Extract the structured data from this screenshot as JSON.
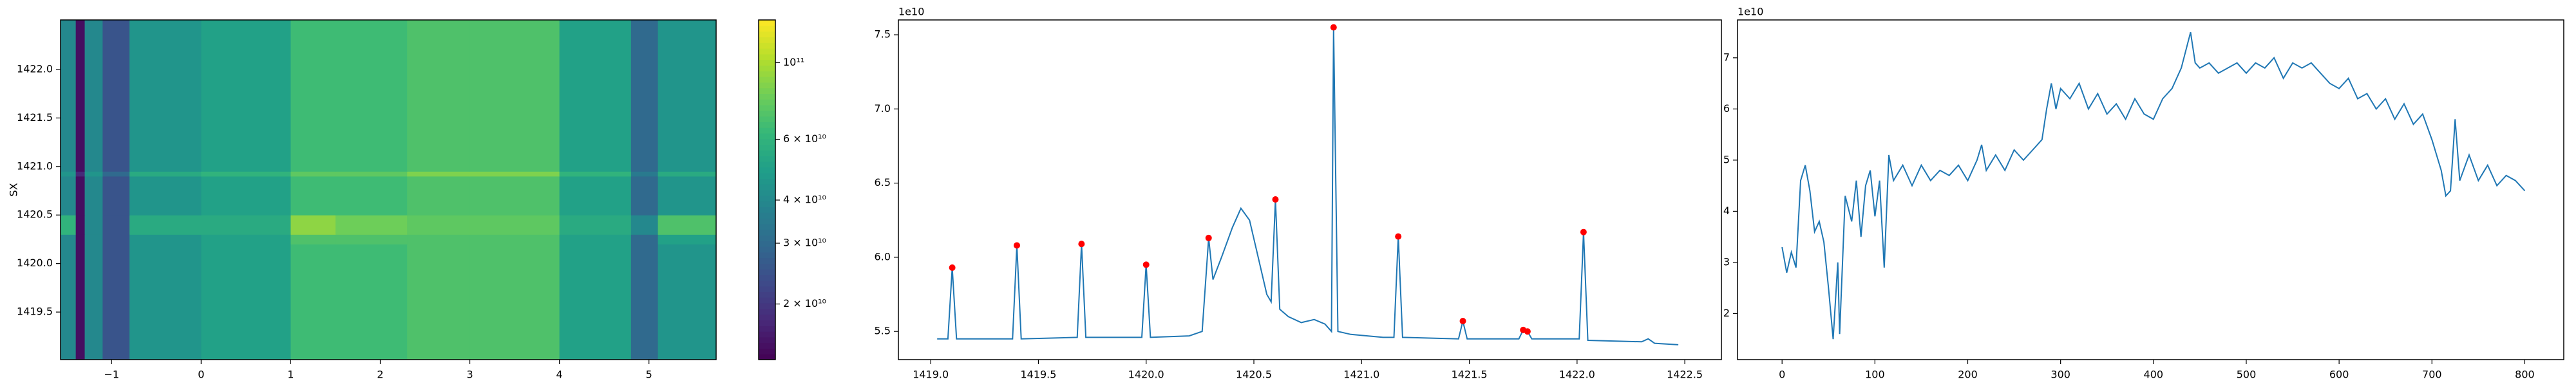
{
  "chart_data": [
    {
      "type": "heatmap",
      "ylabel": "SX",
      "colormap": "viridis",
      "log_color": true,
      "xbins": [
        -1.57,
        -1.4,
        -1.3,
        -1.1,
        -0.8,
        0,
        1,
        1.5,
        2.3,
        3,
        4,
        4.8,
        5.1,
        5.75
      ],
      "ybins": [
        1419.01,
        1420.2,
        1420.3,
        1420.5,
        1420.9,
        1420.95,
        1422.51
      ],
      "values": [
        [
          40000000000.0,
          15000000000.0,
          40000000000.0,
          25000000000.0,
          45000000000.0,
          50000000000.0,
          65000000000.0,
          65000000000.0,
          70000000000.0,
          70000000000.0,
          50000000000.0,
          30000000000.0,
          45000000000.0
        ],
        [
          40000000000.0,
          15000000000.0,
          40000000000.0,
          25000000000.0,
          45000000000.0,
          50000000000.0,
          70000000000.0,
          70000000000.0,
          70000000000.0,
          70000000000.0,
          50000000000.0,
          30000000000.0,
          50000000000.0
        ],
        [
          60000000000.0,
          15000000000.0,
          40000000000.0,
          25000000000.0,
          55000000000.0,
          55000000000.0,
          90000000000.0,
          80000000000.0,
          75000000000.0,
          75000000000.0,
          55000000000.0,
          40000000000.0,
          70000000000.0
        ],
        [
          40000000000.0,
          15000000000.0,
          40000000000.0,
          25000000000.0,
          45000000000.0,
          50000000000.0,
          65000000000.0,
          65000000000.0,
          70000000000.0,
          70000000000.0,
          50000000000.0,
          30000000000.0,
          45000000000.0
        ],
        [
          45000000000.0,
          18000000000.0,
          45000000000.0,
          30000000000.0,
          55000000000.0,
          60000000000.0,
          75000000000.0,
          75000000000.0,
          85000000000.0,
          85000000000.0,
          60000000000.0,
          35000000000.0,
          55000000000.0
        ],
        [
          40000000000.0,
          15000000000.0,
          40000000000.0,
          25000000000.0,
          45000000000.0,
          50000000000.0,
          65000000000.0,
          65000000000.0,
          70000000000.0,
          70000000000.0,
          50000000000.0,
          30000000000.0,
          45000000000.0
        ]
      ],
      "xlim": [
        -1.57,
        5.75
      ],
      "ylim": [
        1419.01,
        1422.51
      ],
      "xticks": [
        {
          "value": -1,
          "label": "−1"
        },
        0,
        1,
        2,
        3,
        4,
        5
      ],
      "yticks": [
        1419.5,
        {
          "value": 1420,
          "label": "1420.0"
        },
        1420.5,
        {
          "value": 1421,
          "label": "1421.0"
        },
        1421.5,
        {
          "value": 1422,
          "label": "1422.0"
        }
      ],
      "clim": [
        13800000000.0,
        133000000000.0
      ],
      "cticks": [
        {
          "value": 20000000000.0,
          "label": "2 × 10¹⁰"
        },
        {
          "value": 30000000000.0,
          "label": "3 × 10¹⁰"
        },
        {
          "value": 40000000000.0,
          "label": "4 × 10¹⁰"
        },
        {
          "value": 60000000000.0,
          "label": "6 × 10¹⁰"
        },
        {
          "value": 100000000000.0,
          "label": "10¹¹"
        }
      ]
    },
    {
      "type": "line",
      "y_offset_text": "1e10",
      "xlim": [
        1418.85,
        1422.67
      ],
      "ylim": [
        5.31,
        7.6
      ],
      "xticks": [
        {
          "value": 1419,
          "label": "1419.0"
        },
        1419.5,
        {
          "value": 1420,
          "label": "1420.0"
        },
        1420.5,
        {
          "value": 1421,
          "label": "1421.0"
        },
        1421.5,
        {
          "value": 1422,
          "label": "1422.0"
        },
        1422.5
      ],
      "yticks": [
        5.5,
        {
          "value": 6,
          "label": "6.0"
        },
        6.5,
        {
          "value": 7,
          "label": "7.0"
        },
        7.5
      ],
      "series": [
        {
          "color": "#1f77b4",
          "x": [
            1419.03,
            1419.08,
            1419.1,
            1419.12,
            1419.38,
            1419.4,
            1419.42,
            1419.68,
            1419.7,
            1419.72,
            1419.98,
            1420.0,
            1420.02,
            1420.2,
            1420.26,
            1420.29,
            1420.31,
            1420.35,
            1420.4,
            1420.44,
            1420.48,
            1420.52,
            1420.56,
            1420.58,
            1420.6,
            1420.62,
            1420.66,
            1420.72,
            1420.78,
            1420.83,
            1420.86,
            1420.87,
            1420.89,
            1420.95,
            1421.1,
            1421.15,
            1421.17,
            1421.19,
            1421.45,
            1421.47,
            1421.49,
            1421.73,
            1421.75,
            1421.77,
            1421.79,
            1422.01,
            1422.03,
            1422.05,
            1422.3,
            1422.33,
            1422.36,
            1422.47
          ],
          "values": [
            5.45,
            5.45,
            5.93,
            5.45,
            5.45,
            6.08,
            5.45,
            5.46,
            6.09,
            5.46,
            5.46,
            5.95,
            5.46,
            5.47,
            5.5,
            6.13,
            5.85,
            6.0,
            6.2,
            6.33,
            6.25,
            6.0,
            5.75,
            5.7,
            6.39,
            5.65,
            5.6,
            5.56,
            5.58,
            5.55,
            5.5,
            7.55,
            5.5,
            5.48,
            5.46,
            5.46,
            6.14,
            5.46,
            5.45,
            5.57,
            5.45,
            5.45,
            5.51,
            5.5,
            5.45,
            5.45,
            6.17,
            5.44,
            5.43,
            5.45,
            5.42,
            5.41
          ]
        },
        {
          "color": "#ff0000",
          "marker": true,
          "x": [
            1419.1,
            1419.4,
            1419.7,
            1420.0,
            1420.29,
            1420.6,
            1420.87,
            1421.17,
            1421.47,
            1421.75,
            1421.77,
            1422.03
          ],
          "values": [
            5.93,
            6.08,
            6.09,
            5.95,
            6.13,
            6.39,
            7.55,
            6.14,
            5.57,
            5.51,
            5.5,
            6.17
          ]
        }
      ]
    },
    {
      "type": "line",
      "y_offset_text": "1e10",
      "xlim": [
        -48,
        842
      ],
      "ylim": [
        1.1,
        7.74
      ],
      "xticks": [
        0,
        100,
        200,
        300,
        400,
        500,
        600,
        700,
        800
      ],
      "yticks": [
        2,
        3,
        4,
        5,
        6,
        7
      ],
      "series": [
        {
          "color": "#1f77b4",
          "x": [
            0,
            5,
            10,
            15,
            20,
            25,
            30,
            35,
            40,
            45,
            50,
            55,
            60,
            62,
            68,
            75,
            80,
            85,
            90,
            95,
            100,
            105,
            110,
            115,
            120,
            130,
            140,
            150,
            160,
            170,
            180,
            190,
            200,
            210,
            215,
            220,
            230,
            240,
            250,
            260,
            270,
            280,
            285,
            290,
            295,
            300,
            310,
            320,
            330,
            340,
            350,
            360,
            370,
            380,
            390,
            400,
            410,
            420,
            430,
            440,
            445,
            450,
            460,
            470,
            480,
            490,
            500,
            510,
            520,
            530,
            540,
            550,
            560,
            570,
            580,
            590,
            600,
            610,
            620,
            630,
            640,
            650,
            660,
            670,
            680,
            690,
            700,
            710,
            715,
            720,
            725,
            730,
            740,
            750,
            760,
            770,
            780,
            790,
            800
          ],
          "values": [
            3.3,
            2.8,
            3.2,
            2.9,
            4.6,
            4.9,
            4.4,
            3.6,
            3.8,
            3.4,
            2.5,
            1.5,
            3.0,
            1.6,
            4.3,
            3.8,
            4.6,
            3.5,
            4.5,
            4.8,
            3.9,
            4.6,
            2.9,
            5.1,
            4.6,
            4.9,
            4.5,
            4.9,
            4.6,
            4.8,
            4.7,
            4.9,
            4.6,
            5.0,
            5.3,
            4.8,
            5.1,
            4.8,
            5.2,
            5.0,
            5.2,
            5.4,
            6.0,
            6.5,
            6.0,
            6.4,
            6.2,
            6.5,
            6.0,
            6.3,
            5.9,
            6.1,
            5.8,
            6.2,
            5.9,
            5.8,
            6.2,
            6.4,
            6.8,
            7.5,
            6.9,
            6.8,
            6.9,
            6.7,
            6.8,
            6.9,
            6.7,
            6.9,
            6.8,
            7.0,
            6.6,
            6.9,
            6.8,
            6.9,
            6.7,
            6.5,
            6.4,
            6.6,
            6.2,
            6.3,
            6.0,
            6.2,
            5.8,
            6.1,
            5.7,
            5.9,
            5.4,
            4.8,
            4.3,
            4.4,
            5.8,
            4.6,
            5.1,
            4.6,
            4.9,
            4.5,
            4.7,
            4.6,
            4.4
          ]
        }
      ]
    }
  ]
}
